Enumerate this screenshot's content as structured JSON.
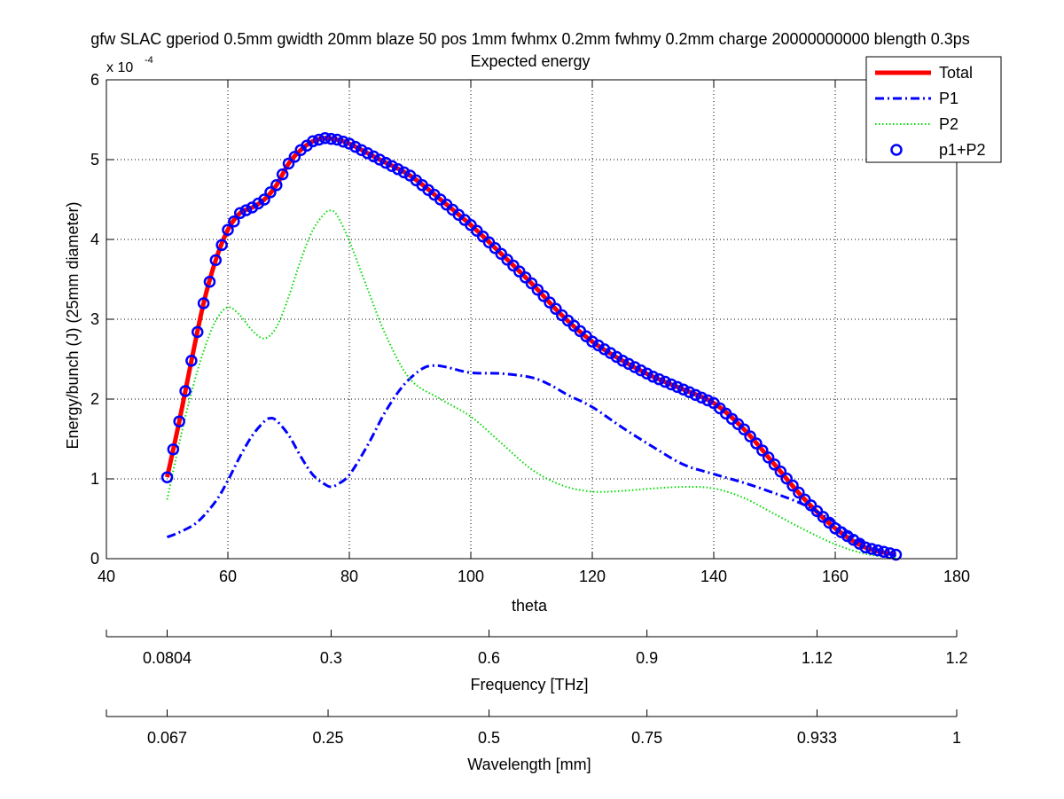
{
  "chart_data": {
    "type": "line",
    "title": "gfw SLAC gperiod 0.5mm gwidth 20mm blaze 50 pos 1mm fwhmx 0.2mm fwhmy 0.2mm charge 20000000000 blength 0.3ps",
    "subtitle": "Expected energy",
    "xlabel": "theta",
    "ylabel": "Energy/bunch (J) (25mm diameter)",
    "y_exponent": "x 10",
    "y_exponent_power": "-4",
    "xlim": [
      40,
      180
    ],
    "ylim": [
      0,
      6
    ],
    "x_ticks": [
      "40",
      "60",
      "80",
      "100",
      "120",
      "140",
      "160",
      "180"
    ],
    "y_ticks": [
      "0",
      "1",
      "2",
      "3",
      "4",
      "5",
      "6"
    ],
    "grid": true,
    "legend_position": "top-right",
    "series": [
      {
        "name": "Total",
        "style": "solid",
        "color": "#ff0000",
        "x": [
          50,
          52,
          54,
          56,
          58,
          60,
          62,
          64,
          66,
          68,
          70,
          72,
          74,
          76,
          78,
          80,
          85,
          90,
          95,
          100,
          105,
          110,
          115,
          120,
          125,
          130,
          135,
          140,
          145,
          150,
          155,
          160,
          165,
          170
        ],
        "values": [
          1.02,
          1.72,
          2.48,
          3.2,
          3.74,
          4.12,
          4.33,
          4.4,
          4.5,
          4.68,
          4.95,
          5.12,
          5.23,
          5.27,
          5.25,
          5.2,
          5.0,
          4.8,
          4.5,
          4.18,
          3.82,
          3.45,
          3.05,
          2.72,
          2.48,
          2.28,
          2.12,
          1.95,
          1.62,
          1.18,
          0.74,
          0.38,
          0.14,
          0.05
        ]
      },
      {
        "name": "P1",
        "style": "dashdot",
        "color": "#0000ff",
        "x": [
          50,
          52,
          55,
          58,
          60,
          62,
          64,
          66,
          67,
          68,
          70,
          72,
          74,
          76,
          77,
          78,
          80,
          83,
          86,
          89,
          92,
          94,
          96,
          100,
          105,
          110,
          113,
          116,
          120,
          125,
          130,
          135,
          140,
          145,
          150,
          155,
          160,
          165,
          170
        ],
        "values": [
          0.27,
          0.33,
          0.46,
          0.72,
          0.98,
          1.28,
          1.54,
          1.72,
          1.76,
          1.73,
          1.55,
          1.28,
          1.05,
          0.93,
          0.9,
          0.93,
          1.05,
          1.42,
          1.85,
          2.18,
          2.38,
          2.42,
          2.4,
          2.33,
          2.32,
          2.27,
          2.18,
          2.05,
          1.9,
          1.64,
          1.4,
          1.18,
          1.06,
          0.95,
          0.82,
          0.67,
          0.45,
          0.18,
          0.03
        ]
      },
      {
        "name": "P2",
        "style": "dotted",
        "color": "#00dd00",
        "x": [
          50,
          52,
          54,
          56,
          58,
          60,
          62,
          64,
          66,
          68,
          70,
          72,
          74,
          76,
          77,
          78,
          80,
          83,
          86,
          90,
          95,
          100,
          105,
          110,
          115,
          120,
          125,
          130,
          135,
          140,
          145,
          150,
          155,
          160,
          165,
          170
        ],
        "values": [
          0.74,
          1.45,
          2.08,
          2.6,
          2.98,
          3.15,
          3.05,
          2.86,
          2.76,
          2.9,
          3.28,
          3.74,
          4.12,
          4.33,
          4.36,
          4.3,
          3.98,
          3.38,
          2.8,
          2.25,
          2.0,
          1.78,
          1.45,
          1.12,
          0.92,
          0.84,
          0.85,
          0.88,
          0.9,
          0.88,
          0.76,
          0.56,
          0.36,
          0.18,
          0.06,
          0.01
        ]
      },
      {
        "name": "p1+P2",
        "style": "circles",
        "color": "#0000ff",
        "x": [
          50,
          52,
          54,
          56,
          58,
          60,
          62,
          64,
          66,
          68,
          70,
          72,
          74,
          76,
          78,
          80,
          85,
          90,
          95,
          100,
          105,
          110,
          115,
          120,
          125,
          130,
          135,
          140,
          145,
          150,
          155,
          160,
          165,
          170
        ],
        "values": [
          1.02,
          1.72,
          2.48,
          3.2,
          3.74,
          4.12,
          4.33,
          4.4,
          4.5,
          4.68,
          4.95,
          5.12,
          5.23,
          5.27,
          5.25,
          5.2,
          5.0,
          4.8,
          4.5,
          4.18,
          3.82,
          3.45,
          3.05,
          2.72,
          2.48,
          2.28,
          2.12,
          1.95,
          1.62,
          1.18,
          0.74,
          0.38,
          0.14,
          0.05
        ]
      }
    ],
    "secondary_axes": [
      {
        "label": "Frequency [THz]",
        "ticks": [
          {
            "label": "0.0804",
            "theta": 50
          },
          {
            "label": "0.3",
            "theta": 77
          },
          {
            "label": "0.6",
            "theta": 103
          },
          {
            "label": "0.9",
            "theta": 129
          },
          {
            "label": "1.12",
            "theta": 157
          },
          {
            "label": "1.2",
            "theta": 180
          }
        ]
      },
      {
        "label": "Wavelength [mm]",
        "ticks": [
          {
            "label": "0.067",
            "theta": 50
          },
          {
            "label": "0.25",
            "theta": 76.5
          },
          {
            "label": "0.5",
            "theta": 103
          },
          {
            "label": "0.75",
            "theta": 129
          },
          {
            "label": "0.933",
            "theta": 157
          },
          {
            "label": "1",
            "theta": 180
          }
        ]
      }
    ]
  }
}
